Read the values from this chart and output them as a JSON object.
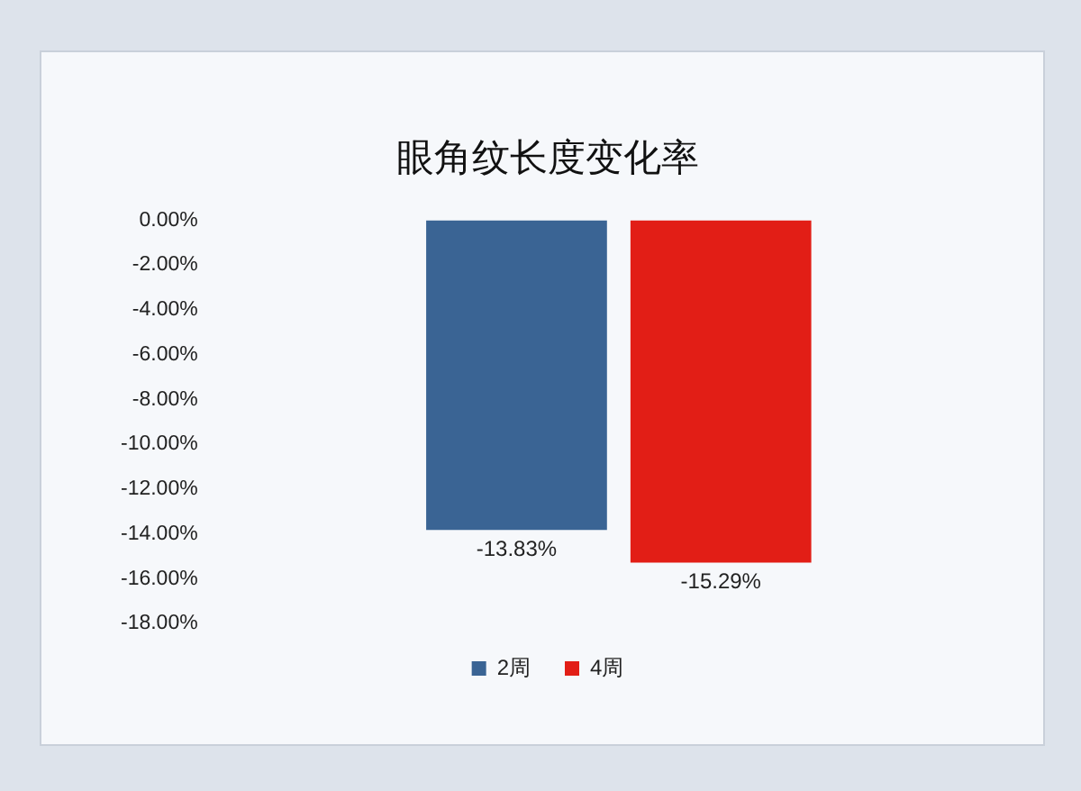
{
  "chart_data": {
    "type": "bar",
    "title": "眼角纹长度变化率",
    "categories": [
      null
    ],
    "series": [
      {
        "name": "2周",
        "color": "#3a6494",
        "values": [
          -13.83
        ],
        "value_labels": [
          "-13.83%"
        ]
      },
      {
        "name": "4周",
        "color": "#e21e16",
        "values": [
          -15.29
        ],
        "value_labels": [
          "-15.29%"
        ]
      }
    ],
    "ylim": [
      -18,
      0
    ],
    "yticks": [
      {
        "value": 0,
        "label": "0.00%"
      },
      {
        "value": -2,
        "label": "-2.00%"
      },
      {
        "value": -4,
        "label": "-4.00%"
      },
      {
        "value": -6,
        "label": "-6.00%"
      },
      {
        "value": -8,
        "label": "-8.00%"
      },
      {
        "value": -10,
        "label": "-10.00%"
      },
      {
        "value": -12,
        "label": "-12.00%"
      },
      {
        "value": -14,
        "label": "-14.00%"
      },
      {
        "value": -16,
        "label": "-16.00%"
      },
      {
        "value": -18,
        "label": "-18.00%"
      }
    ],
    "grid": false,
    "legend": "bottom"
  }
}
